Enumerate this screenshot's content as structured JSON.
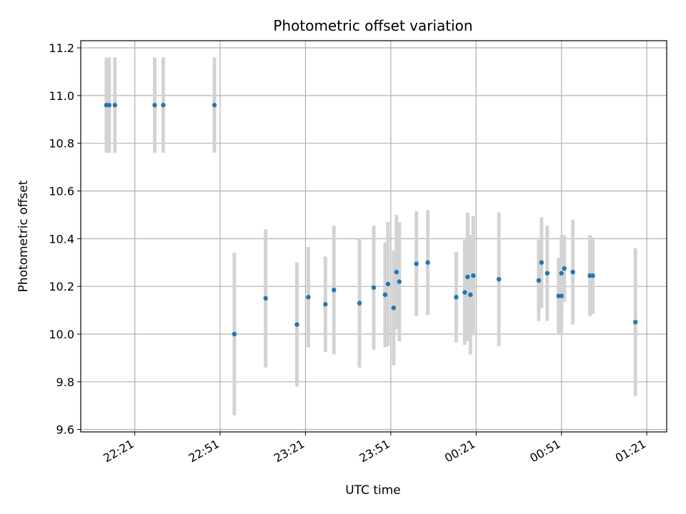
{
  "chart_data": {
    "type": "scatter",
    "title": "Photometric offset variation",
    "xlabel": "UTC time",
    "ylabel": "Photometric offset",
    "x_unit": "HH:MM (UTC, day 1 → day 2)",
    "xlim": [
      "22:02",
      "01:28"
    ],
    "ylim": [
      9.59,
      11.23
    ],
    "x_ticks": [
      "22:21",
      "22:51",
      "23:21",
      "23:51",
      "00:21",
      "00:51",
      "01:21"
    ],
    "y_ticks": [
      9.6,
      9.8,
      10.0,
      10.2,
      10.4,
      10.6,
      10.8,
      11.0,
      11.2
    ],
    "grid": true,
    "colors": {
      "point": "#1f77b4",
      "errorbar": "#d3d3d3",
      "grid": "#b0b0b0"
    },
    "series": [
      {
        "points": [
          {
            "x": "22:11",
            "y": 10.96,
            "err": 0.2
          },
          {
            "x": "22:12",
            "y": 10.96,
            "err": 0.2
          },
          {
            "x": "22:14",
            "y": 10.96,
            "err": 0.2
          },
          {
            "x": "22:28",
            "y": 10.96,
            "err": 0.2
          },
          {
            "x": "22:31",
            "y": 10.96,
            "err": 0.2
          },
          {
            "x": "22:49",
            "y": 10.96,
            "err": 0.2
          },
          {
            "x": "22:56",
            "y": 10.0,
            "err": 0.34
          },
          {
            "x": "23:07",
            "y": 10.15,
            "err": 0.29
          },
          {
            "x": "23:18",
            "y": 10.04,
            "err": 0.26
          },
          {
            "x": "23:22",
            "y": 10.155,
            "err": 0.21
          },
          {
            "x": "23:28",
            "y": 10.125,
            "err": 0.2
          },
          {
            "x": "23:31",
            "y": 10.185,
            "err": 0.27
          },
          {
            "x": "23:40",
            "y": 10.13,
            "err": 0.27
          },
          {
            "x": "23:45",
            "y": 10.195,
            "err": 0.26
          },
          {
            "x": "23:49",
            "y": 10.165,
            "err": 0.22
          },
          {
            "x": "23:50",
            "y": 10.21,
            "err": 0.26
          },
          {
            "x": "23:52",
            "y": 10.11,
            "err": 0.24
          },
          {
            "x": "23:53",
            "y": 10.26,
            "err": 0.24
          },
          {
            "x": "23:54",
            "y": 10.22,
            "err": 0.25
          },
          {
            "x": "00:00",
            "y": 10.295,
            "err": 0.22
          },
          {
            "x": "00:04",
            "y": 10.3,
            "err": 0.22
          },
          {
            "x": "00:14",
            "y": 10.155,
            "err": 0.19
          },
          {
            "x": "00:17",
            "y": 10.175,
            "err": 0.22
          },
          {
            "x": "00:18",
            "y": 10.24,
            "err": 0.27
          },
          {
            "x": "00:19",
            "y": 10.165,
            "err": 0.25
          },
          {
            "x": "00:20",
            "y": 10.245,
            "err": 0.25
          },
          {
            "x": "00:29",
            "y": 10.23,
            "err": 0.28
          },
          {
            "x": "00:43",
            "y": 10.225,
            "err": 0.17
          },
          {
            "x": "00:44",
            "y": 10.3,
            "err": 0.19
          },
          {
            "x": "00:46",
            "y": 10.255,
            "err": 0.2
          },
          {
            "x": "00:50",
            "y": 10.16,
            "err": 0.16
          },
          {
            "x": "00:51",
            "y": 10.16,
            "err": 0.16
          },
          {
            "x": "00:51",
            "y": 10.255,
            "err": 0.16
          },
          {
            "x": "00:52",
            "y": 10.275,
            "err": 0.14
          },
          {
            "x": "00:55",
            "y": 10.26,
            "err": 0.22
          },
          {
            "x": "01:01",
            "y": 10.245,
            "err": 0.17
          },
          {
            "x": "01:02",
            "y": 10.245,
            "err": 0.16
          },
          {
            "x": "01:17",
            "y": 10.05,
            "err": 0.31
          }
        ]
      }
    ]
  }
}
